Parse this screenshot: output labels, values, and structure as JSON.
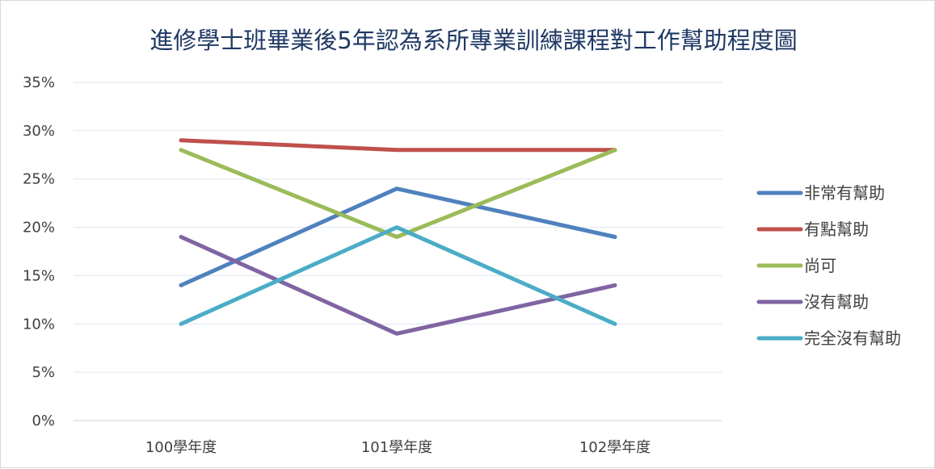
{
  "chart_data": {
    "type": "line",
    "title": "進修學士班畢業後5年認為系所專業訓練課程對工作幫助程度圖",
    "xlabel": "",
    "ylabel": "",
    "categories": [
      "100學年度",
      "101學年度",
      "102學年度"
    ],
    "y_ticks": [
      "0%",
      "5%",
      "10%",
      "15%",
      "20%",
      "25%",
      "30%",
      "35%"
    ],
    "ylim": [
      0,
      35
    ],
    "y_unit": "%",
    "grid": "horizontal",
    "legend_position": "right",
    "series": [
      {
        "name": "非常有幫助",
        "color": "#4f81bd",
        "values": [
          14,
          24,
          19
        ]
      },
      {
        "name": "有點幫助",
        "color": "#c0504d",
        "values": [
          29,
          28,
          28
        ]
      },
      {
        "name": "尚可",
        "color": "#9bbb59",
        "values": [
          28,
          19,
          28
        ]
      },
      {
        "name": "沒有幫助",
        "color": "#8064a2",
        "values": [
          19,
          9,
          14
        ]
      },
      {
        "name": "完全沒有幫助",
        "color": "#4bacc6",
        "values": [
          10,
          20,
          10
        ]
      }
    ]
  }
}
